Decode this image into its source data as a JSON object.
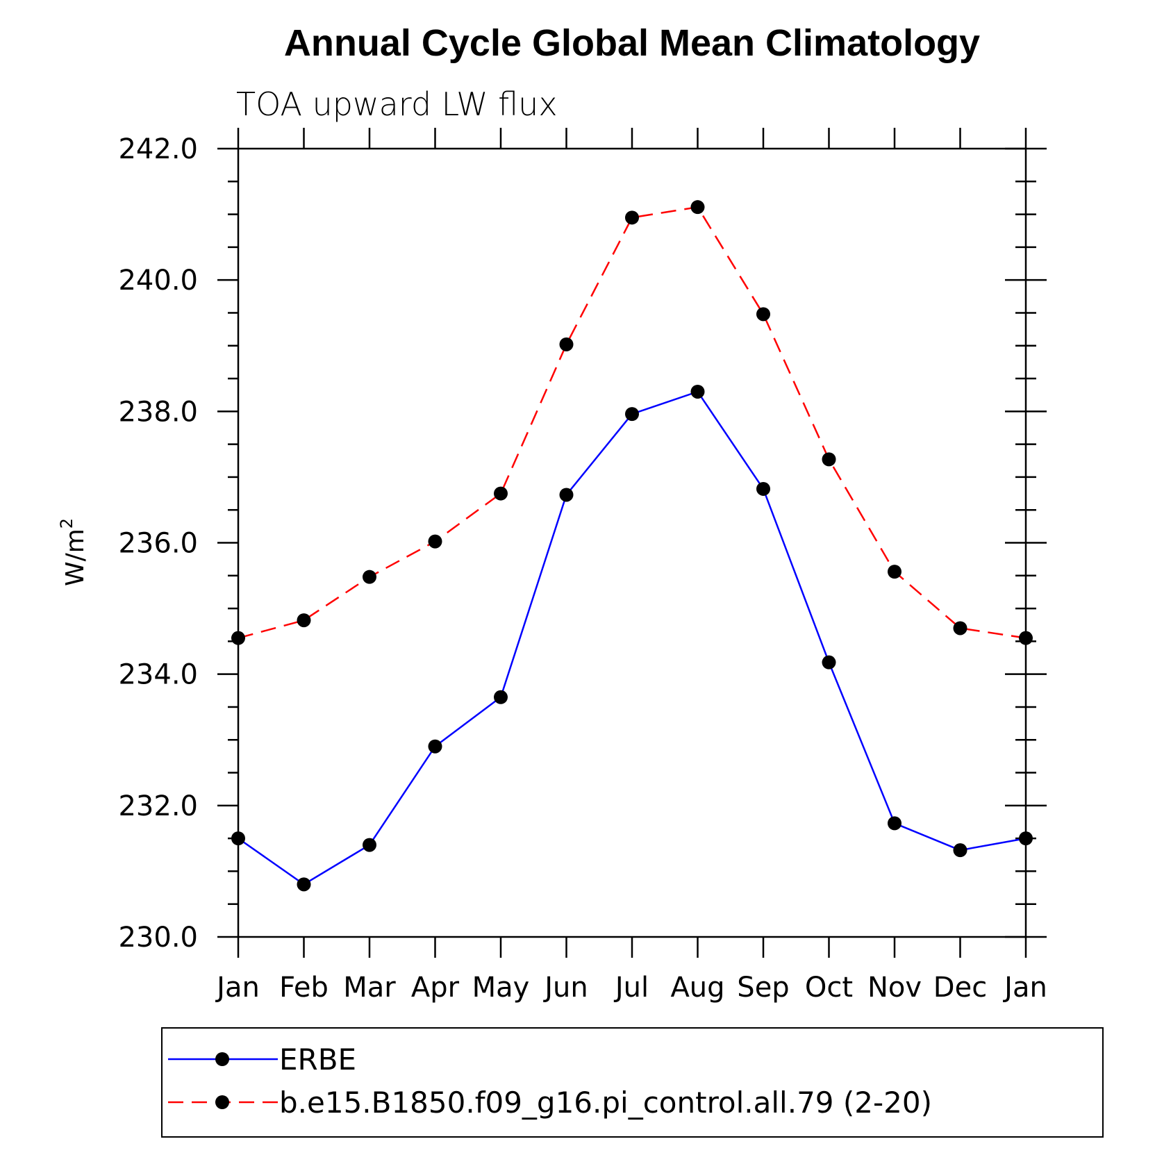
{
  "chart_data": {
    "type": "line",
    "title": "Annual Cycle Global Mean Climatology",
    "subtitle": "TOA upward LW flux",
    "ylabel": "W/m",
    "ylabel_superscript": "2",
    "ylim": [
      230.0,
      242.0
    ],
    "yticks": [
      "230.0",
      "232.0",
      "234.0",
      "236.0",
      "238.0",
      "240.0",
      "242.0"
    ],
    "categories": [
      "Jan",
      "Feb",
      "Mar",
      "Apr",
      "May",
      "Jun",
      "Jul",
      "Aug",
      "Sep",
      "Oct",
      "Nov",
      "Dec",
      "Jan"
    ],
    "series": [
      {
        "name": "ERBE",
        "color": "#0000ff",
        "style": "solid",
        "values": [
          231.5,
          230.8,
          231.4,
          232.9,
          233.65,
          236.73,
          237.96,
          238.3,
          236.82,
          234.18,
          231.73,
          231.32,
          231.5
        ]
      },
      {
        "name": "b.e15.B1850.f09_g16.pi_control.all.79 (2-20)",
        "color": "#ff0000",
        "style": "dashed",
        "values": [
          234.55,
          234.82,
          235.48,
          236.02,
          236.75,
          239.02,
          240.95,
          241.11,
          239.48,
          237.27,
          235.56,
          234.7,
          234.55
        ]
      }
    ]
  }
}
